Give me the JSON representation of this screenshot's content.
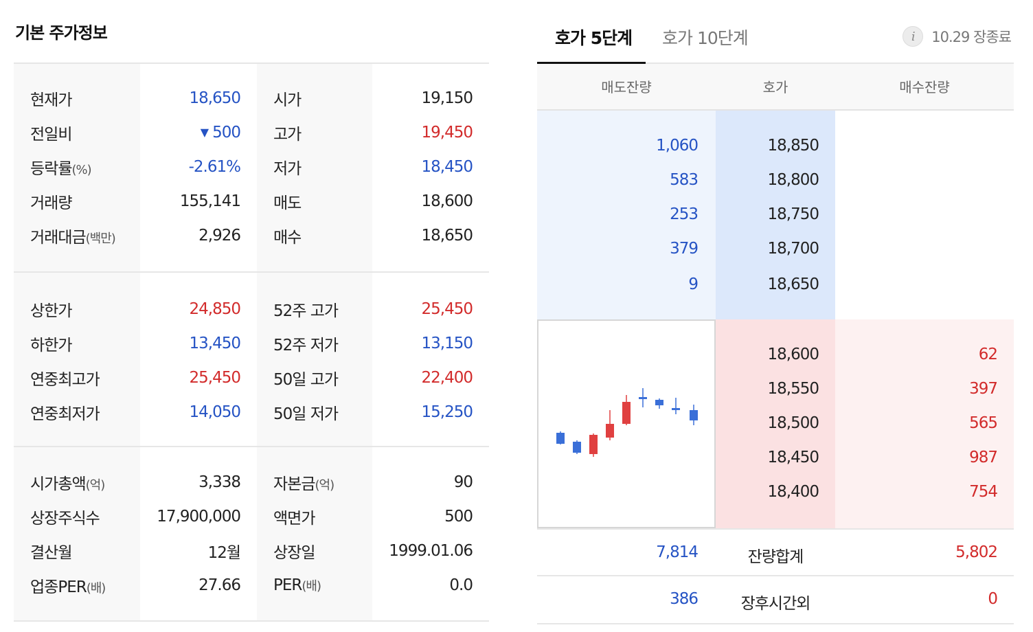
{
  "basic_info": {
    "title": "기본 주가정보",
    "group1": [
      {
        "label": "현재가",
        "value": "18,650",
        "label2": "시가",
        "value2": "19,150"
      },
      {
        "label": "전일비",
        "arrow": "▼",
        "value": "500",
        "label2": "고가",
        "value2": "19,450"
      },
      {
        "label": "등락률",
        "unit": "(%)",
        "value": "-2.61%",
        "label2": "저가",
        "value2": "18,450"
      },
      {
        "label": "거래량",
        "value": "155,141",
        "label2": "매도",
        "value2": "18,600"
      },
      {
        "label": "거래대금",
        "unit": "(백만)",
        "value": "2,926",
        "label2": "매수",
        "value2": "18,650"
      }
    ],
    "group2": [
      {
        "label": "상한가",
        "value": "24,850",
        "label2": "52주 고가",
        "value2": "25,450"
      },
      {
        "label": "하한가",
        "value": "13,450",
        "label2": "52주 저가",
        "value2": "13,150"
      },
      {
        "label": "연중최고가",
        "value": "25,450",
        "label2": "50일 고가",
        "value2": "22,400"
      },
      {
        "label": "연중최저가",
        "value": "14,050",
        "label2": "50일 저가",
        "value2": "15,250"
      }
    ],
    "group3": [
      {
        "label": "시가총액",
        "unit": "(억)",
        "value": "3,338",
        "label2": "자본금",
        "unit2": "(억)",
        "value2": "90"
      },
      {
        "label": "상장주식수",
        "value": "17,900,000",
        "label2": "액면가",
        "value2": "500"
      },
      {
        "label": "결산월",
        "value": "12월",
        "label2": "상장일",
        "value2": "1999.01.06"
      },
      {
        "label": "업종PER",
        "unit": "(배)",
        "value": "27.66",
        "label2": "PER",
        "unit2": "(배)",
        "value2": "0.0"
      }
    ]
  },
  "orderbook": {
    "tabs": [
      "호가 5단계",
      "호가 10단계"
    ],
    "status": "10.29 장종료",
    "info_icon": "info-icon",
    "headers": [
      "매도잔량",
      "호가",
      "매수잔량"
    ],
    "asks": [
      {
        "qty": "1,060",
        "price": "18,850"
      },
      {
        "qty": "583",
        "price": "18,800"
      },
      {
        "qty": "253",
        "price": "18,750"
      },
      {
        "qty": "379",
        "price": "18,700"
      },
      {
        "qty": "9",
        "price": "18,650"
      }
    ],
    "bids": [
      {
        "price": "18,600",
        "qty": "62"
      },
      {
        "price": "18,550",
        "qty": "397"
      },
      {
        "price": "18,500",
        "qty": "565"
      },
      {
        "price": "18,450",
        "qty": "987"
      },
      {
        "price": "18,400",
        "qty": "754"
      }
    ],
    "total": {
      "label": "잔량합계",
      "ask": "7,814",
      "bid": "5,802"
    },
    "after_hours": {
      "label": "장후시간외",
      "ask": "386",
      "bid": "0"
    }
  },
  "colors": {
    "up": "#d22b2b",
    "down": "#2553c4"
  }
}
